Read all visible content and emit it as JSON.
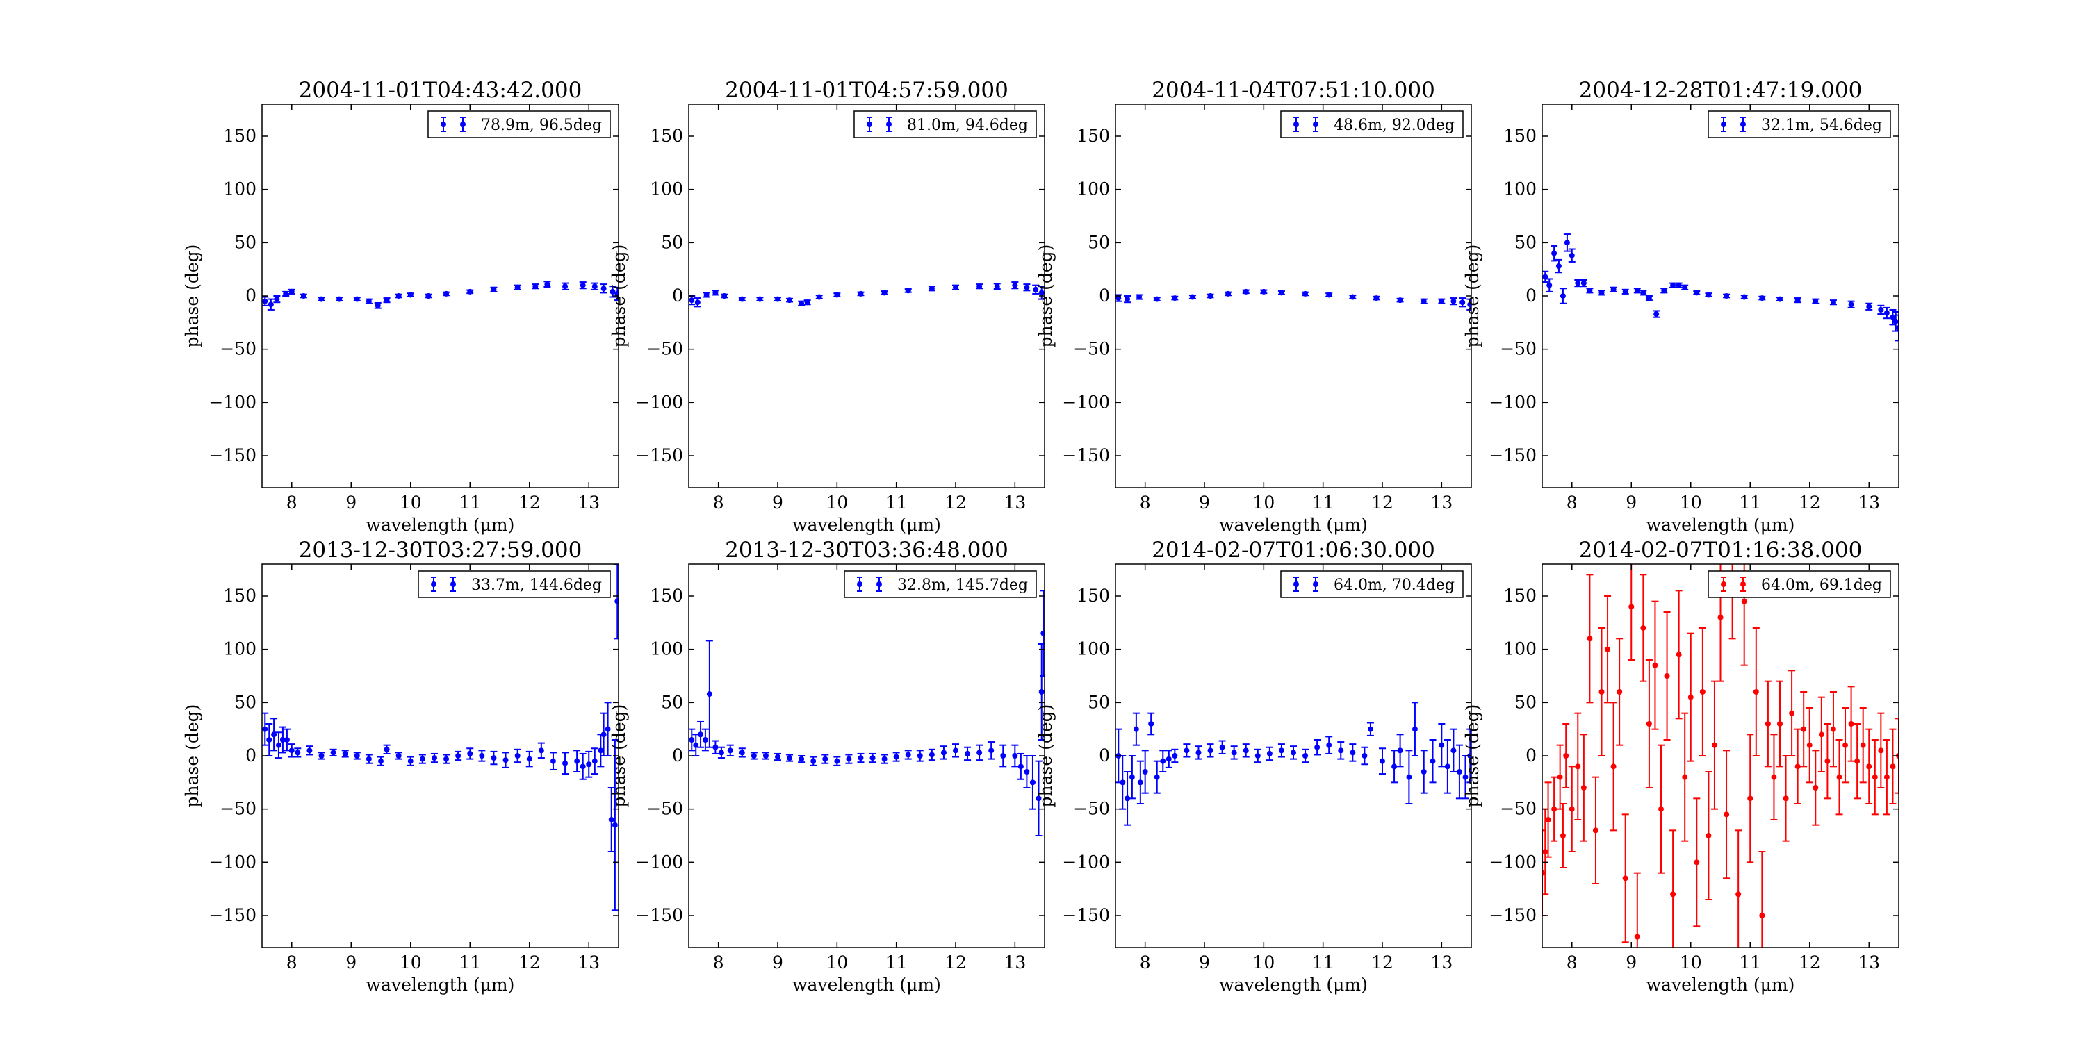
{
  "figure": {
    "xlabel": "wavelength (μm)",
    "ylabel": "phase (deg)",
    "xlim": [
      7.5,
      13.5
    ],
    "ylim": [
      -180,
      180
    ],
    "xticks": [
      8,
      9,
      10,
      11,
      12,
      13
    ],
    "yticks": [
      -150,
      -100,
      -50,
      0,
      50,
      100,
      150
    ]
  },
  "chart_data": [
    {
      "type": "scatter",
      "title": "2004-11-01T04:43:42.000",
      "color": "#0000ff",
      "legend": "78.9m, 96.5deg",
      "legend_position": "top-right",
      "xlabel": "wavelength (μm)",
      "ylabel": "phase (deg)",
      "xlim": [
        7.5,
        13.5
      ],
      "ylim": [
        -180,
        180
      ],
      "x": [
        7.55,
        7.65,
        7.75,
        7.9,
        8.0,
        8.2,
        8.5,
        8.8,
        9.1,
        9.3,
        9.45,
        9.6,
        9.8,
        10.0,
        10.3,
        10.6,
        11.0,
        11.4,
        11.8,
        12.1,
        12.3,
        12.6,
        12.9,
        13.1,
        13.25,
        13.4,
        13.48
      ],
      "y": [
        -5,
        -8,
        -3,
        2,
        4,
        0,
        -3,
        -3,
        -3,
        -5,
        -9,
        -4,
        0,
        1,
        0,
        2,
        4,
        6,
        8,
        9,
        11,
        9,
        10,
        9,
        7,
        4,
        2
      ],
      "yerr": [
        4,
        5,
        3,
        2,
        2,
        1.5,
        1.5,
        1.5,
        1.5,
        2,
        2.5,
        2,
        1.5,
        1.5,
        1.5,
        1.5,
        1.5,
        2,
        2,
        2,
        2.5,
        3,
        3,
        3,
        4,
        5,
        6
      ]
    },
    {
      "type": "scatter",
      "title": "2004-11-01T04:57:59.000",
      "color": "#0000ff",
      "legend": "81.0m, 94.6deg",
      "legend_position": "top-right",
      "xlabel": "wavelength (μm)",
      "ylabel": "phase (deg)",
      "xlim": [
        7.5,
        13.5
      ],
      "ylim": [
        -180,
        180
      ],
      "x": [
        7.55,
        7.65,
        7.8,
        7.95,
        8.1,
        8.4,
        8.7,
        9.0,
        9.2,
        9.4,
        9.5,
        9.7,
        10.0,
        10.4,
        10.8,
        11.2,
        11.6,
        12.0,
        12.4,
        12.7,
        13.0,
        13.2,
        13.35,
        13.45
      ],
      "y": [
        -4,
        -6,
        1,
        3,
        0,
        -3,
        -3,
        -3,
        -4,
        -7,
        -6,
        -1,
        1,
        2,
        3,
        5,
        7,
        8,
        9,
        9,
        10,
        8,
        6,
        3
      ],
      "yerr": [
        4,
        4,
        2,
        2,
        1.5,
        1.5,
        1.5,
        1.5,
        1.5,
        2,
        2,
        1.5,
        1.5,
        1.5,
        1.5,
        1.5,
        2,
        2,
        2,
        2.5,
        3,
        3,
        4,
        6
      ]
    },
    {
      "type": "scatter",
      "title": "2004-11-04T07:51:10.000",
      "color": "#0000ff",
      "legend": "48.6m, 92.0deg",
      "legend_position": "top-right",
      "xlabel": "wavelength (μm)",
      "ylabel": "phase (deg)",
      "xlim": [
        7.5,
        13.5
      ],
      "ylim": [
        -180,
        180
      ],
      "x": [
        7.55,
        7.7,
        7.9,
        8.2,
        8.5,
        8.8,
        9.1,
        9.4,
        9.7,
        10.0,
        10.3,
        10.7,
        11.1,
        11.5,
        11.9,
        12.3,
        12.7,
        13.0,
        13.2,
        13.35,
        13.48
      ],
      "y": [
        -2,
        -3,
        -1,
        -3,
        -2,
        -1,
        0,
        2,
        4,
        4,
        3,
        2,
        1,
        -1,
        -2,
        -4,
        -5,
        -5,
        -5,
        -6,
        -8
      ],
      "yerr": [
        3,
        3,
        2,
        1.5,
        1.5,
        1.5,
        1.5,
        1.5,
        1.5,
        1.5,
        1.5,
        1.5,
        1.5,
        1.5,
        1.5,
        1.5,
        2,
        2,
        3,
        4,
        5
      ]
    },
    {
      "type": "scatter",
      "title": "2004-12-28T01:47:19.000",
      "color": "#0000ff",
      "legend": "32.1m, 54.6deg",
      "legend_position": "top-right",
      "xlabel": "wavelength (μm)",
      "ylabel": "phase (deg)",
      "xlim": [
        7.5,
        13.5
      ],
      "ylim": [
        -180,
        180
      ],
      "x": [
        7.55,
        7.62,
        7.7,
        7.78,
        7.85,
        7.92,
        8.0,
        8.1,
        8.2,
        8.3,
        8.5,
        8.7,
        8.9,
        9.1,
        9.2,
        9.3,
        9.42,
        9.55,
        9.7,
        9.8,
        9.9,
        10.1,
        10.3,
        10.6,
        10.9,
        11.2,
        11.5,
        11.8,
        12.1,
        12.4,
        12.7,
        13.0,
        13.2,
        13.3,
        13.4,
        13.45,
        13.5
      ],
      "y": [
        18,
        10,
        40,
        28,
        0,
        50,
        38,
        12,
        12,
        5,
        3,
        6,
        4,
        5,
        3,
        -2,
        -17,
        5,
        10,
        10,
        8,
        3,
        1,
        0,
        -1,
        -2,
        -3,
        -4,
        -5,
        -6,
        -8,
        -10,
        -13,
        -16,
        -20,
        -24,
        -30
      ],
      "yerr": [
        5,
        6,
        7,
        6,
        7,
        8,
        6,
        3,
        3,
        2,
        2,
        2,
        2,
        2,
        2,
        2,
        3,
        2,
        2,
        2,
        2,
        1.5,
        1.5,
        1.5,
        1.5,
        1.5,
        1.5,
        2,
        2,
        2,
        3,
        3,
        4,
        5,
        7,
        9,
        12
      ]
    },
    {
      "type": "scatter",
      "title": "2013-12-30T03:27:59.000",
      "color": "#0000ff",
      "legend": "33.7m, 144.6deg",
      "legend_position": "top-right",
      "xlabel": "wavelength (μm)",
      "ylabel": "phase (deg)",
      "xlim": [
        7.5,
        13.5
      ],
      "ylim": [
        -180,
        180
      ],
      "x": [
        7.55,
        7.62,
        7.7,
        7.78,
        7.85,
        7.92,
        8.0,
        8.1,
        8.3,
        8.5,
        8.7,
        8.9,
        9.1,
        9.3,
        9.5,
        9.6,
        9.8,
        10.0,
        10.2,
        10.4,
        10.6,
        10.8,
        11.0,
        11.2,
        11.4,
        11.6,
        11.8,
        12.0,
        12.2,
        12.4,
        12.6,
        12.8,
        12.9,
        13.0,
        13.1,
        13.2,
        13.25,
        13.32,
        13.38,
        13.44,
        13.48
      ],
      "y": [
        25,
        15,
        20,
        10,
        15,
        15,
        5,
        3,
        5,
        0,
        3,
        2,
        0,
        -3,
        -5,
        6,
        0,
        -5,
        -3,
        -2,
        -3,
        0,
        2,
        0,
        -2,
        -4,
        0,
        -3,
        5,
        -5,
        -7,
        -5,
        -10,
        -8,
        -5,
        5,
        20,
        25,
        -60,
        -65,
        145
      ],
      "yerr": [
        15,
        15,
        15,
        12,
        12,
        10,
        6,
        4,
        4,
        3,
        3,
        3,
        3,
        4,
        4,
        4,
        3,
        4,
        4,
        4,
        4,
        4,
        5,
        5,
        6,
        7,
        6,
        7,
        7,
        8,
        10,
        10,
        12,
        12,
        12,
        15,
        20,
        25,
        30,
        80,
        35
      ]
    },
    {
      "type": "scatter",
      "title": "2013-12-30T03:36:48.000",
      "color": "#0000ff",
      "legend": "32.8m, 145.7deg",
      "legend_position": "top-right",
      "xlabel": "wavelength (μm)",
      "ylabel": "phase (deg)",
      "xlim": [
        7.5,
        13.5
      ],
      "ylim": [
        -180,
        180
      ],
      "x": [
        7.55,
        7.62,
        7.7,
        7.78,
        7.85,
        7.95,
        8.05,
        8.2,
        8.4,
        8.6,
        8.8,
        9.0,
        9.2,
        9.4,
        9.6,
        9.8,
        10.0,
        10.2,
        10.4,
        10.6,
        10.8,
        11.0,
        11.2,
        11.4,
        11.6,
        11.8,
        12.0,
        12.2,
        12.4,
        12.6,
        12.8,
        13.0,
        13.1,
        13.2,
        13.3,
        13.4,
        13.45,
        13.48
      ],
      "y": [
        15,
        10,
        20,
        15,
        58,
        8,
        3,
        5,
        3,
        0,
        0,
        -1,
        -2,
        -3,
        -5,
        -3,
        -5,
        -3,
        -2,
        -2,
        -3,
        -1,
        1,
        0,
        1,
        3,
        5,
        2,
        3,
        5,
        0,
        0,
        -10,
        -15,
        -25,
        -40,
        60,
        115
      ],
      "yerr": [
        10,
        10,
        12,
        10,
        50,
        6,
        5,
        5,
        4,
        3,
        3,
        3,
        3,
        3,
        4,
        4,
        4,
        4,
        4,
        4,
        4,
        4,
        4,
        5,
        5,
        6,
        6,
        6,
        7,
        8,
        10,
        10,
        12,
        15,
        25,
        35,
        45,
        40
      ]
    },
    {
      "type": "scatter",
      "title": "2014-02-07T01:06:30.000",
      "color": "#0000ff",
      "legend": "64.0m, 70.4deg",
      "legend_position": "top-right",
      "xlabel": "wavelength (μm)",
      "ylabel": "phase (deg)",
      "xlim": [
        7.5,
        13.5
      ],
      "ylim": [
        -180,
        180
      ],
      "x": [
        7.55,
        7.62,
        7.7,
        7.78,
        7.85,
        7.92,
        8.0,
        8.1,
        8.2,
        8.3,
        8.4,
        8.5,
        8.7,
        8.9,
        9.1,
        9.3,
        9.5,
        9.7,
        9.9,
        10.1,
        10.3,
        10.5,
        10.7,
        10.9,
        11.1,
        11.3,
        11.5,
        11.7,
        11.8,
        12.0,
        12.2,
        12.3,
        12.45,
        12.55,
        12.7,
        12.85,
        13.0,
        13.1,
        13.2,
        13.3,
        13.4,
        13.48
      ],
      "y": [
        0,
        -25,
        -40,
        -20,
        25,
        -25,
        -15,
        30,
        -20,
        -5,
        -3,
        0,
        5,
        3,
        5,
        8,
        3,
        5,
        0,
        2,
        5,
        3,
        0,
        8,
        10,
        5,
        3,
        0,
        25,
        -5,
        -10,
        5,
        -20,
        25,
        -15,
        -5,
        10,
        -10,
        5,
        -15,
        -20,
        0
      ],
      "yerr": [
        25,
        25,
        25,
        20,
        15,
        20,
        20,
        10,
        15,
        10,
        8,
        6,
        6,
        6,
        6,
        6,
        6,
        6,
        6,
        6,
        6,
        6,
        6,
        7,
        8,
        8,
        8,
        8,
        6,
        12,
        15,
        15,
        25,
        25,
        20,
        20,
        20,
        25,
        20,
        25,
        20,
        25
      ]
    },
    {
      "type": "scatter",
      "title": "2014-02-07T01:16:38.000",
      "color": "#ff0000",
      "legend": "64.0m, 69.1deg",
      "legend_position": "top-right",
      "xlabel": "wavelength (μm)",
      "ylabel": "phase (deg)",
      "xlim": [
        7.5,
        13.5
      ],
      "ylim": [
        -180,
        180
      ],
      "x": [
        7.5,
        7.55,
        7.6,
        7.7,
        7.8,
        7.85,
        7.9,
        8.0,
        8.1,
        8.2,
        8.3,
        8.4,
        8.5,
        8.6,
        8.7,
        8.8,
        8.9,
        9.0,
        9.1,
        9.2,
        9.3,
        9.4,
        9.5,
        9.6,
        9.7,
        9.8,
        9.9,
        10.0,
        10.1,
        10.2,
        10.3,
        10.4,
        10.5,
        10.6,
        10.7,
        10.8,
        10.9,
        11.0,
        11.1,
        11.2,
        11.3,
        11.4,
        11.5,
        11.6,
        11.7,
        11.8,
        11.9,
        12.0,
        12.1,
        12.2,
        12.3,
        12.4,
        12.5,
        12.6,
        12.7,
        12.8,
        12.9,
        13.0,
        13.1,
        13.2,
        13.3,
        13.4,
        13.5
      ],
      "y": [
        -110,
        -90,
        -60,
        -50,
        -20,
        -75,
        0,
        -50,
        -10,
        -30,
        110,
        -70,
        60,
        100,
        -10,
        60,
        -115,
        140,
        -170,
        120,
        30,
        85,
        -50,
        75,
        -130,
        95,
        -20,
        55,
        -100,
        60,
        -75,
        10,
        130,
        -55,
        170,
        -130,
        145,
        -40,
        60,
        -150,
        30,
        -20,
        30,
        -40,
        40,
        -10,
        25,
        10,
        -30,
        20,
        -5,
        25,
        -20,
        10,
        30,
        -5,
        10,
        -10,
        -20,
        5,
        -20,
        -10,
        0
      ],
      "yerr": [
        40,
        40,
        35,
        30,
        30,
        30,
        30,
        40,
        50,
        50,
        60,
        50,
        60,
        50,
        60,
        50,
        60,
        50,
        60,
        50,
        60,
        60,
        60,
        60,
        60,
        60,
        60,
        60,
        60,
        60,
        60,
        60,
        60,
        60,
        60,
        60,
        60,
        60,
        60,
        60,
        40,
        40,
        40,
        40,
        40,
        35,
        35,
        35,
        35,
        35,
        35,
        35,
        35,
        35,
        35,
        35,
        35,
        35,
        35,
        35,
        35,
        35,
        35
      ]
    }
  ]
}
